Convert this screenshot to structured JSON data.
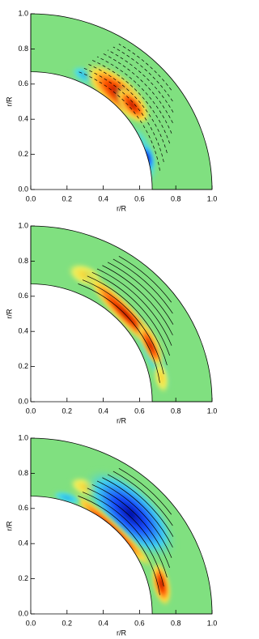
{
  "chart_data": [
    {
      "type": "contour",
      "xlabel": "r/R",
      "ylabel": "r/R",
      "xlim": [
        0,
        1
      ],
      "ylim": [
        0,
        1
      ],
      "xticks": [
        {
          "value": 0,
          "label": "0.0"
        },
        {
          "value": 0.2,
          "label": "0.2"
        },
        {
          "value": 0.4,
          "label": "0.4"
        },
        {
          "value": 0.6,
          "label": "0.6"
        },
        {
          "value": 0.8,
          "label": "0.8"
        },
        {
          "value": 1,
          "label": "1.0"
        }
      ],
      "yticks": [
        {
          "value": 0,
          "label": "0.0"
        },
        {
          "value": 0.2,
          "label": "0.2"
        },
        {
          "value": 0.4,
          "label": "0.4"
        },
        {
          "value": 0.6,
          "label": "0.6"
        },
        {
          "value": 0.8,
          "label": "0.8"
        },
        {
          "value": 1,
          "label": "1.0"
        }
      ]
    },
    {
      "type": "contour",
      "xlabel": "r/R",
      "ylabel": "r/R",
      "xlim": [
        0,
        1
      ],
      "ylim": [
        0,
        1
      ],
      "xticks": [
        {
          "value": 0,
          "label": "0.0"
        },
        {
          "value": 0.2,
          "label": "0.2"
        },
        {
          "value": 0.4,
          "label": "0.4"
        },
        {
          "value": 0.6,
          "label": "0.6"
        },
        {
          "value": 0.8,
          "label": "0.8"
        },
        {
          "value": 1,
          "label": "1.0"
        }
      ],
      "yticks": [
        {
          "value": 0,
          "label": "0.0"
        },
        {
          "value": 0.2,
          "label": "0.2"
        },
        {
          "value": 0.4,
          "label": "0.4"
        },
        {
          "value": 0.6,
          "label": "0.6"
        },
        {
          "value": 0.8,
          "label": "0.8"
        },
        {
          "value": 1,
          "label": "1.0"
        }
      ]
    },
    {
      "type": "contour",
      "xlabel": "r/R",
      "ylabel": "r/R",
      "xlim": [
        0,
        1
      ],
      "ylim": [
        0,
        1
      ],
      "xticks": [
        {
          "value": 0,
          "label": "0.0"
        },
        {
          "value": 0.2,
          "label": "0.2"
        },
        {
          "value": 0.4,
          "label": "0.4"
        },
        {
          "value": 0.6,
          "label": "0.6"
        },
        {
          "value": 0.8,
          "label": "0.8"
        },
        {
          "value": 1,
          "label": "1.0"
        }
      ],
      "yticks": [
        {
          "value": 0,
          "label": "0.0"
        },
        {
          "value": 0.2,
          "label": "0.2"
        },
        {
          "value": 0.4,
          "label": "0.4"
        },
        {
          "value": 0.6,
          "label": "0.6"
        },
        {
          "value": 0.8,
          "label": "0.8"
        },
        {
          "value": 1,
          "label": "1.0"
        }
      ]
    }
  ]
}
